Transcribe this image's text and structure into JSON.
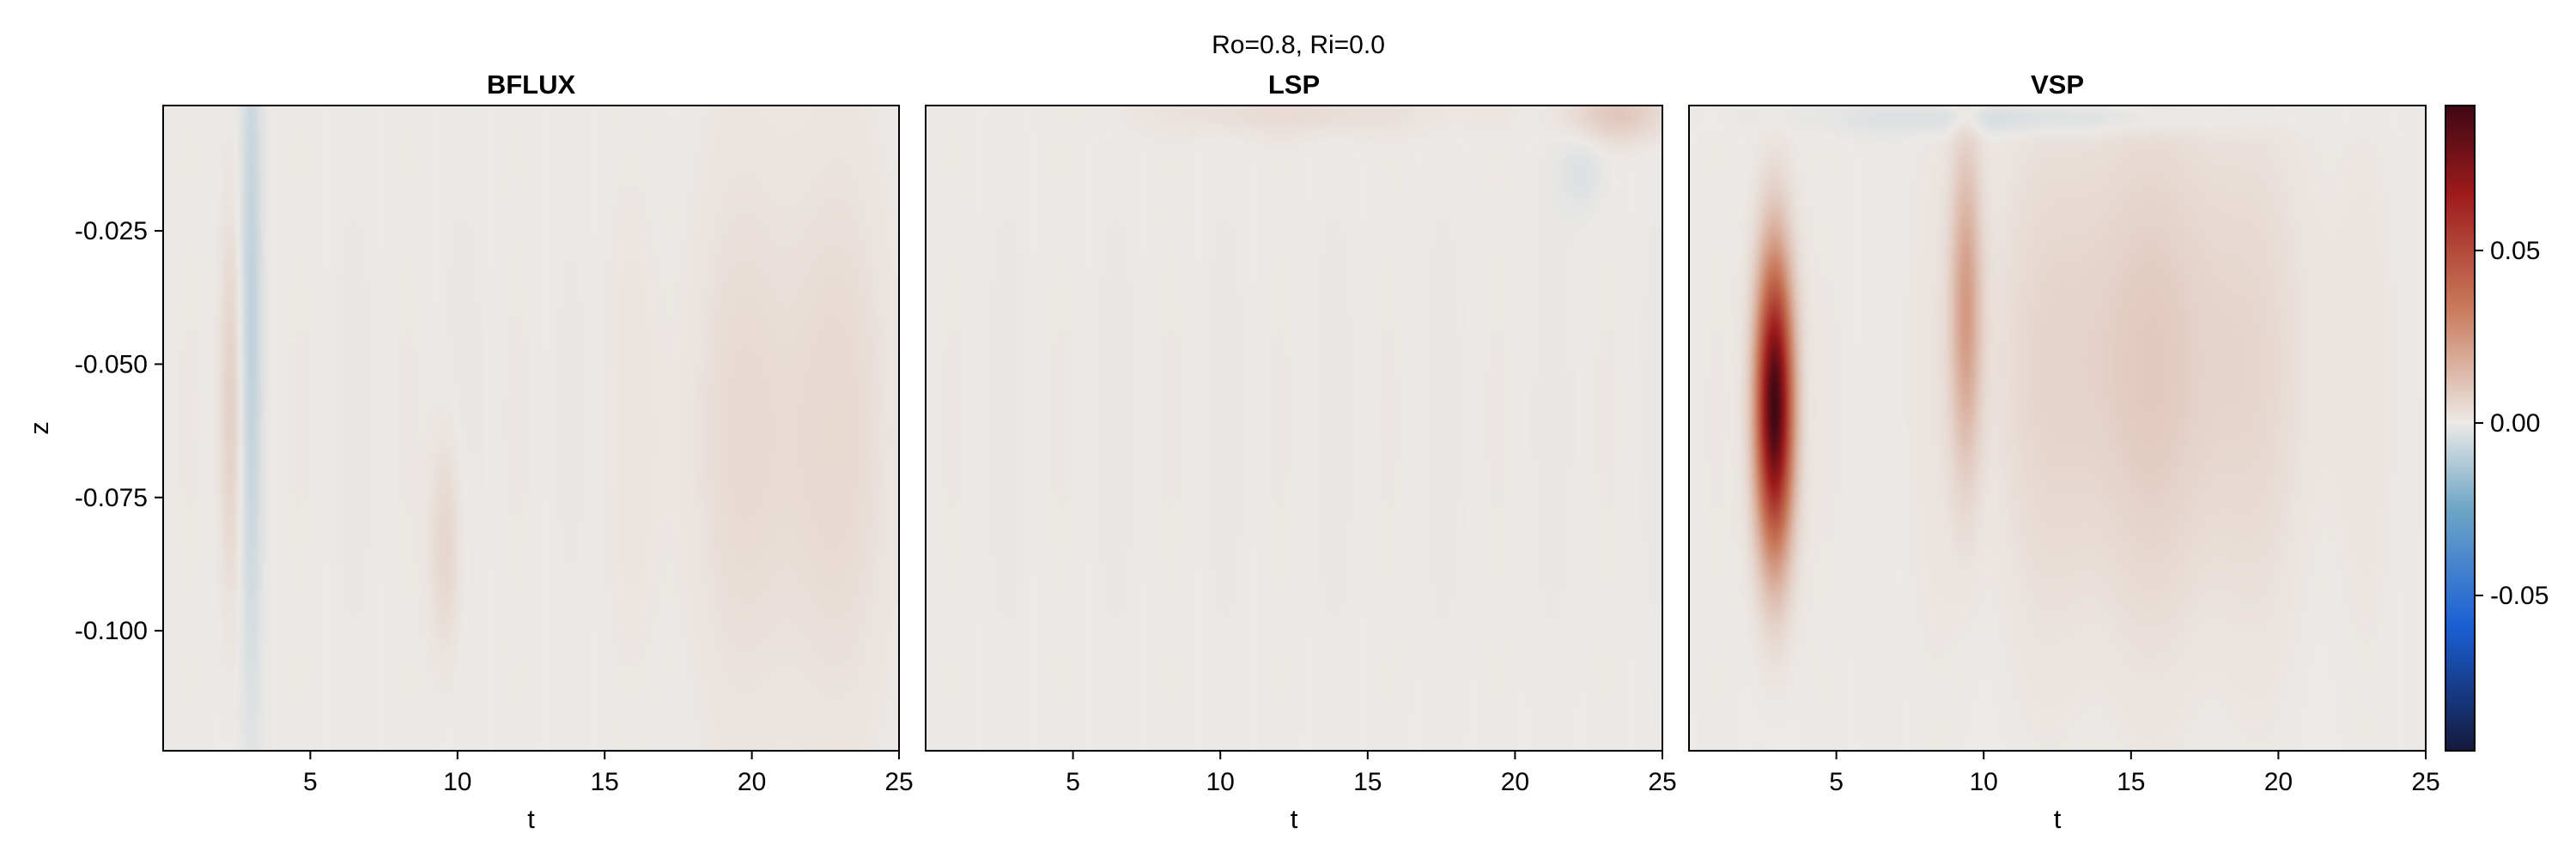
{
  "figure_title": "Ro=0.8, Ri=0.0",
  "colors": {
    "min": "#14193d",
    "low": "#1a5fd4",
    "mid_low": "#6fa6c6",
    "zero": "#ece9e6",
    "mid_high": "#c97a5b",
    "high": "#9e1b1b",
    "max": "#3e0714"
  },
  "chart_data": [
    {
      "type": "heatmap",
      "title": "BFLUX",
      "xlabel": "t",
      "ylabel": "z",
      "xlim": [
        0,
        25
      ],
      "ylim": [
        -0.1225,
        -0.0015
      ],
      "xticks": [
        5,
        10,
        15,
        20,
        25
      ],
      "xtick_labels": [
        "5",
        "10",
        "15",
        "20",
        "25"
      ],
      "yticks": [
        -0.025,
        -0.05,
        -0.075,
        -0.1
      ],
      "ytick_labels": [
        "-0.025",
        "-0.050",
        "-0.075",
        "-0.100"
      ],
      "features": [
        {
          "t": 3.0,
          "z": -0.04,
          "value": -0.008,
          "t_width": 0.35,
          "z_width": 0.07
        },
        {
          "t": 2.3,
          "z": -0.058,
          "value": 0.008,
          "t_width": 0.35,
          "z_width": 0.035
        },
        {
          "t": 9.6,
          "z": -0.084,
          "value": 0.006,
          "t_width": 0.5,
          "z_width": 0.02
        },
        {
          "t": 21.5,
          "z": -0.063,
          "value": 0.005,
          "t_width": 4.0,
          "z_width": 0.05
        }
      ]
    },
    {
      "type": "heatmap",
      "title": "LSP",
      "xlabel": "t",
      "ylabel": "",
      "xlim": [
        0,
        25
      ],
      "ylim": [
        -0.1225,
        -0.0015
      ],
      "xticks": [
        5,
        10,
        15,
        20,
        25
      ],
      "xtick_labels": [
        "5",
        "10",
        "15",
        "20",
        "25"
      ],
      "yticks": [],
      "ytick_labels": [],
      "features": [
        {
          "t": 23.5,
          "z": -0.003,
          "value": 0.01,
          "t_width": 1.6,
          "z_width": 0.005
        },
        {
          "t": 12.5,
          "z": -0.003,
          "value": 0.004,
          "t_width": 5.0,
          "z_width": 0.004
        },
        {
          "t": 22.3,
          "z": -0.014,
          "value": -0.003,
          "t_width": 0.8,
          "z_width": 0.008
        }
      ]
    },
    {
      "type": "heatmap",
      "title": "VSP",
      "xlabel": "t",
      "ylabel": "",
      "xlim": [
        0,
        25
      ],
      "ylim": [
        -0.1225,
        -0.0015
      ],
      "xticks": [
        5,
        10,
        15,
        20,
        25
      ],
      "xtick_labels": [
        "5",
        "10",
        "15",
        "20",
        "25"
      ],
      "yticks": [],
      "ytick_labels": [],
      "features": [
        {
          "t": 2.9,
          "z": -0.058,
          "value": 0.092,
          "t_width": 0.6,
          "z_width": 0.026
        },
        {
          "t": 9.4,
          "z": -0.04,
          "value": 0.022,
          "t_width": 0.5,
          "z_width": 0.028
        },
        {
          "t": 15.5,
          "z": -0.05,
          "value": 0.009,
          "t_width": 5.0,
          "z_width": 0.045
        },
        {
          "t": 12.0,
          "z": -0.004,
          "value": -0.005,
          "t_width": 7.0,
          "z_width": 0.003
        }
      ]
    }
  ],
  "colorbar": {
    "range": [
      -0.095,
      0.092
    ],
    "ticks": [
      -0.05,
      0.0,
      0.05
    ],
    "tick_labels": [
      "-0.05",
      "0.00",
      "0.05"
    ]
  }
}
